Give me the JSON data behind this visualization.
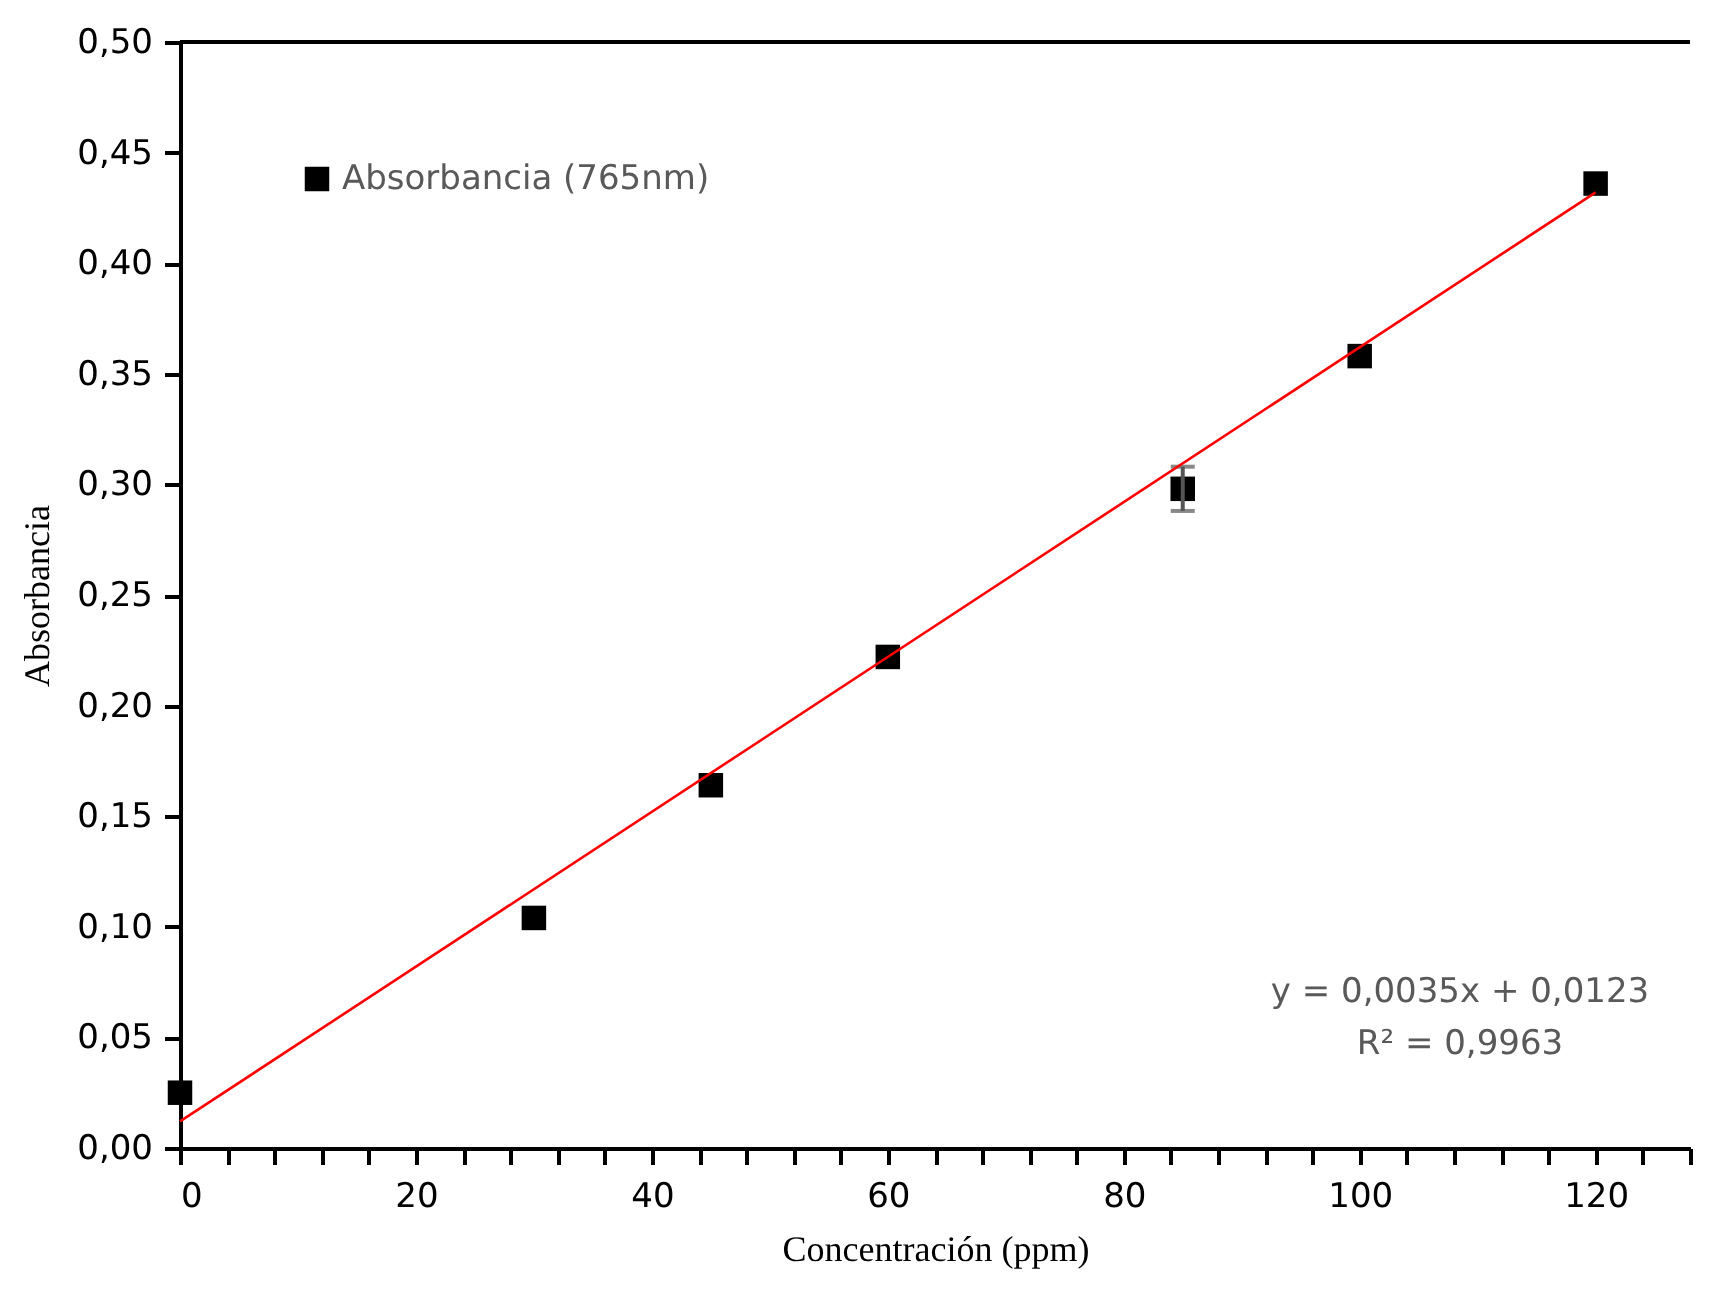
{
  "chart_data": {
    "type": "scatter",
    "xlabel": "Concentración (ppm)",
    "ylabel": "Absorbancia",
    "xlim": [
      0,
      128
    ],
    "ylim": [
      0,
      0.5
    ],
    "xticks": [
      0,
      {
        "value": 4,
        "label": null
      },
      {
        "value": 8,
        "label": null
      },
      {
        "value": 12,
        "label": null
      },
      {
        "value": 16,
        "label": null
      },
      20,
      {
        "value": 24,
        "label": null
      },
      {
        "value": 28,
        "label": null
      },
      {
        "value": 32,
        "label": null
      },
      {
        "value": 36,
        "label": null
      },
      40,
      {
        "value": 44,
        "label": null
      },
      {
        "value": 48,
        "label": null
      },
      {
        "value": 52,
        "label": null
      },
      {
        "value": 56,
        "label": null
      },
      60,
      {
        "value": 64,
        "label": null
      },
      {
        "value": 68,
        "label": null
      },
      {
        "value": 72,
        "label": null
      },
      {
        "value": 76,
        "label": null
      },
      80,
      {
        "value": 84,
        "label": null
      },
      {
        "value": 88,
        "label": null
      },
      {
        "value": 92,
        "label": null
      },
      {
        "value": 96,
        "label": null
      },
      100,
      {
        "value": 104,
        "label": null
      },
      {
        "value": 108,
        "label": null
      },
      {
        "value": 112,
        "label": null
      },
      {
        "value": 116,
        "label": null
      },
      120,
      {
        "value": 124,
        "label": null
      },
      {
        "value": 128,
        "label": null
      }
    ],
    "yticks": [
      {
        "value": 0,
        "label": "0,00"
      },
      {
        "value": 0.05,
        "label": "0,05"
      },
      {
        "value": 0.1,
        "label": "0,10"
      },
      {
        "value": 0.15,
        "label": "0,15"
      },
      {
        "value": 0.2,
        "label": "0,20"
      },
      {
        "value": 0.25,
        "label": "0,25"
      },
      {
        "value": 0.3,
        "label": "0,30"
      },
      {
        "value": 0.35,
        "label": "0,35"
      },
      {
        "value": 0.4,
        "label": "0,40"
      },
      {
        "value": 0.45,
        "label": "0,45"
      },
      {
        "value": 0.5,
        "label": "0,50"
      }
    ],
    "grid": false,
    "legend": "top left",
    "series": [
      {
        "name": "Absorbancia (765nm)",
        "marker": "square",
        "color": "#000000",
        "x": [
          0,
          30,
          45,
          60,
          85,
          100,
          120
        ],
        "values": [
          0.025,
          0.104,
          0.164,
          0.222,
          0.298,
          0.358,
          0.436
        ],
        "errors": [
          null,
          null,
          null,
          null,
          0.01,
          null,
          null
        ]
      },
      {
        "type": "line",
        "color": "#ff0000",
        "x": [
          0,
          120
        ],
        "values": [
          0.012,
          0.432
        ]
      }
    ],
    "annotations": [
      "y = 0,0035x + 0,0123",
      "R² = 0,9963"
    ]
  }
}
